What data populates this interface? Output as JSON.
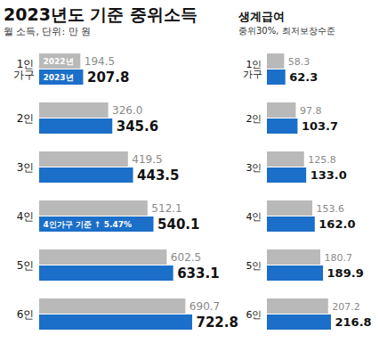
{
  "chart_data": [
    {
      "type": "bar",
      "orientation": "horizontal",
      "title": "2023년도 기준 중위소득",
      "subtitle": "월 소득, 단위: 만 원",
      "categories": [
        "1인 가구",
        "2인",
        "3인",
        "4인",
        "5인",
        "6인"
      ],
      "series": [
        {
          "name": "2022년",
          "color": "#b9b9b9",
          "values": [
            194.5,
            326.0,
            419.5,
            512.1,
            602.5,
            690.7
          ],
          "value_labels": [
            "194.5",
            "326.0",
            "419.5",
            "512.1",
            "602.5",
            "690.7"
          ]
        },
        {
          "name": "2023년",
          "color": "#1c6fc8",
          "values": [
            207.8,
            345.6,
            443.5,
            540.1,
            633.1,
            722.8
          ],
          "value_labels": [
            "207.8",
            "345.6",
            "443.5",
            "540.1",
            "633.1",
            "722.8"
          ]
        }
      ],
      "data_labels": true,
      "tick_labels": "y",
      "legend": "top-left",
      "annotations": [
        {
          "text": "4인가구 기준 ↑ 5.47%",
          "category": "4인"
        }
      ]
    },
    {
      "type": "bar",
      "orientation": "horizontal",
      "title": "생계급여",
      "subtitle": "중위30%, 최저보장수준",
      "categories": [
        "1인 가구",
        "2인",
        "3인",
        "4인",
        "5인",
        "6인"
      ],
      "series": [
        {
          "color": "#b9b9b9",
          "values": [
            58.3,
            97.8,
            125.8,
            153.6,
            180.7,
            207.2
          ],
          "value_labels": [
            "58.3",
            "97.8",
            "125.8",
            "153.6",
            "180.7",
            "207.2"
          ]
        },
        {
          "color": "#1c6fc8",
          "values": [
            62.3,
            103.7,
            133.0,
            162.0,
            189.9,
            216.8
          ],
          "value_labels": [
            "62.3",
            "103.7",
            "133.0",
            "162.0",
            "189.9",
            "216.8"
          ]
        }
      ],
      "data_labels": true,
      "tick_labels": "y"
    }
  ]
}
